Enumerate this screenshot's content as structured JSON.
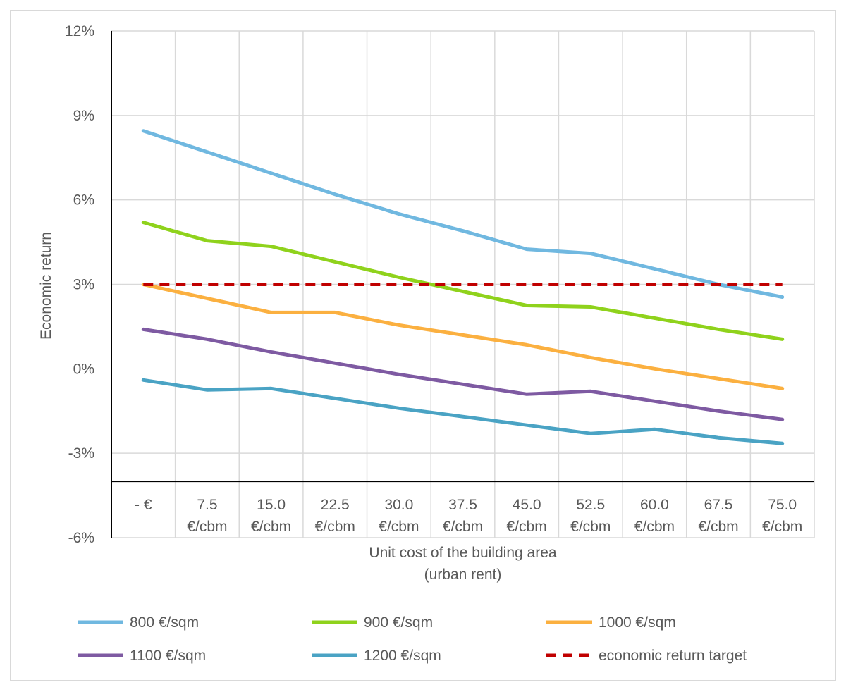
{
  "chart_data": {
    "type": "line",
    "title": "",
    "xlabel_lines": [
      "Unit cost of the building area",
      "(urban rent)"
    ],
    "ylabel": "Economic return",
    "ylim": [
      -6,
      12
    ],
    "yticks": [
      12,
      9,
      6,
      3,
      0,
      -3,
      -6
    ],
    "ytick_labels": [
      "12%",
      "9%",
      "6%",
      "3%",
      "0%",
      "-3%",
      "-6%"
    ],
    "grid": true,
    "legend_position": "bottom",
    "categories": [
      [
        "- €",
        ""
      ],
      [
        "7.5",
        "€/cbm"
      ],
      [
        "15.0",
        "€/cbm"
      ],
      [
        "22.5",
        "€/cbm"
      ],
      [
        "30.0",
        "€/cbm"
      ],
      [
        "37.5",
        "€/cbm"
      ],
      [
        "45.0",
        "€/cbm"
      ],
      [
        "52.5",
        "€/cbm"
      ],
      [
        "60.0",
        "€/cbm"
      ],
      [
        "67.5",
        "€/cbm"
      ],
      [
        "75.0",
        "€/cbm"
      ]
    ],
    "series": [
      {
        "name": "800 €/sqm",
        "color": "#70b8e0",
        "dashed": false,
        "values": [
          8.45,
          7.7,
          6.95,
          6.2,
          5.5,
          4.9,
          4.25,
          4.1,
          3.55,
          3.0,
          2.55
        ]
      },
      {
        "name": "900 €/sqm",
        "color": "#8fd21c",
        "dashed": false,
        "values": [
          5.2,
          4.55,
          4.35,
          3.8,
          3.25,
          2.75,
          2.25,
          2.2,
          1.8,
          1.4,
          1.05
        ]
      },
      {
        "name": "1000 €/sqm",
        "color": "#fbb040",
        "dashed": false,
        "values": [
          3.0,
          2.5,
          2.0,
          2.0,
          1.55,
          1.2,
          0.85,
          0.4,
          0.0,
          -0.35,
          -0.7
        ]
      },
      {
        "name": "1100 €/sqm",
        "color": "#7e5aa2",
        "dashed": false,
        "values": [
          1.4,
          1.05,
          0.6,
          0.2,
          -0.2,
          -0.55,
          -0.9,
          -0.8,
          -1.15,
          -1.5,
          -1.8
        ]
      },
      {
        "name": "1200 €/sqm",
        "color": "#4aa3c4",
        "dashed": false,
        "values": [
          -0.4,
          -0.75,
          -0.7,
          -1.05,
          -1.4,
          -1.7,
          -2.0,
          -2.3,
          -2.15,
          -2.45,
          -2.65
        ]
      },
      {
        "name": "economic return target",
        "color": "#c00000",
        "dashed": true,
        "values": [
          3.0,
          3.0,
          3.0,
          3.0,
          3.0,
          3.0,
          3.0,
          3.0,
          3.0,
          3.0,
          3.0
        ]
      }
    ]
  }
}
